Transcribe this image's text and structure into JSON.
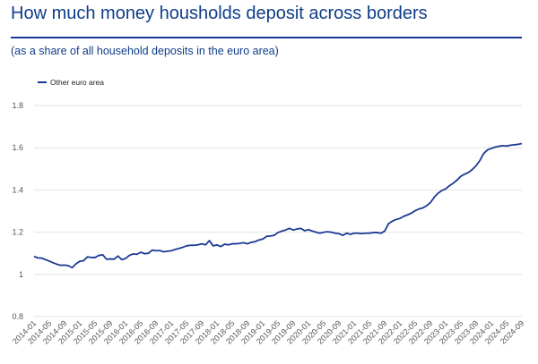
{
  "header": {
    "title": "How much money housholds deposit across borders",
    "subtitle": "(as a share of all household deposits in the euro area)"
  },
  "colors": {
    "series": "#1c3a94",
    "grid": "#e3e3e3",
    "title": "#103d8a"
  },
  "chart_data": {
    "type": "line",
    "title": "How much money housholds deposit across borders",
    "subtitle": "(as a share of all household deposits in the euro area)",
    "xlabel": "",
    "ylabel": "",
    "ylim": [
      0.8,
      1.8
    ],
    "yticks": [
      "0.8",
      "1",
      "1.2",
      "1.4",
      "1.6",
      "1.8"
    ],
    "ytick_values": [
      0.8,
      1.0,
      1.2,
      1.4,
      1.6,
      1.8
    ],
    "grid": true,
    "legend_position": "top-left",
    "xticks": [
      "2014-01",
      "2014-05",
      "2014-09",
      "2015-01",
      "2015-05",
      "2015-09",
      "2016-01",
      "2016-05",
      "2016-09",
      "2017-01",
      "2017-05",
      "2017-09",
      "2018-01",
      "2018-05",
      "2018-09",
      "2019-01",
      "2019-05",
      "2019-09",
      "2020-01",
      "2020-05",
      "2020-09",
      "2021-01",
      "2021-05",
      "2021-09",
      "2022-01",
      "2022-05",
      "2022-09",
      "2023-01",
      "2023-05",
      "2023-09",
      "2024-01",
      "2024-05",
      "2024-09"
    ],
    "x_start": "2014-01",
    "x_end": "2024-09",
    "series": [
      {
        "name": "Other euro area",
        "color": "#1c3a94",
        "values": [
          1.085,
          1.078,
          1.077,
          1.07,
          1.063,
          1.055,
          1.048,
          1.043,
          1.044,
          1.041,
          1.032,
          1.05,
          1.062,
          1.065,
          1.083,
          1.08,
          1.08,
          1.09,
          1.093,
          1.072,
          1.073,
          1.072,
          1.087,
          1.07,
          1.075,
          1.09,
          1.097,
          1.095,
          1.105,
          1.098,
          1.1,
          1.115,
          1.112,
          1.113,
          1.107,
          1.11,
          1.112,
          1.118,
          1.123,
          1.128,
          1.135,
          1.138,
          1.138,
          1.14,
          1.145,
          1.14,
          1.16,
          1.135,
          1.14,
          1.132,
          1.143,
          1.14,
          1.145,
          1.145,
          1.147,
          1.15,
          1.145,
          1.152,
          1.155,
          1.163,
          1.167,
          1.18,
          1.182,
          1.185,
          1.198,
          1.205,
          1.21,
          1.218,
          1.21,
          1.215,
          1.218,
          1.207,
          1.212,
          1.205,
          1.2,
          1.195,
          1.2,
          1.202,
          1.2,
          1.195,
          1.193,
          1.185,
          1.195,
          1.19,
          1.195,
          1.195,
          1.193,
          1.195,
          1.195,
          1.198,
          1.198,
          1.195,
          1.205,
          1.24,
          1.252,
          1.26,
          1.265,
          1.275,
          1.282,
          1.29,
          1.302,
          1.31,
          1.315,
          1.325,
          1.34,
          1.365,
          1.385,
          1.397,
          1.405,
          1.42,
          1.432,
          1.447,
          1.465,
          1.475,
          1.483,
          1.497,
          1.515,
          1.54,
          1.573,
          1.59,
          1.597,
          1.603,
          1.607,
          1.61,
          1.608,
          1.612,
          1.614,
          1.616,
          1.62
        ]
      }
    ]
  }
}
